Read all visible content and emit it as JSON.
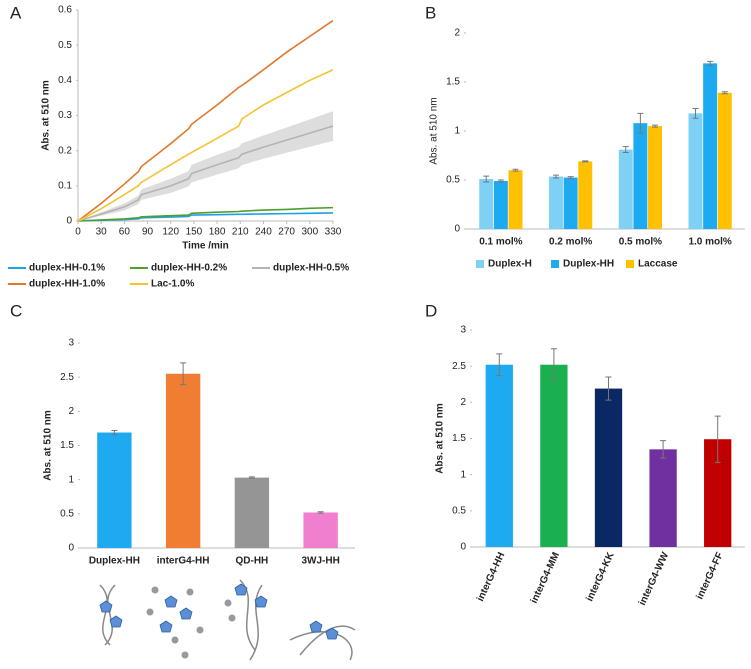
{
  "chart_data": [
    {
      "type": "line",
      "panel": "A",
      "xlabel": "Time /min",
      "ylabel": "Abs. at 510 nm",
      "x": [
        0,
        30,
        60,
        78,
        82,
        120,
        143,
        147,
        180,
        208,
        212,
        240,
        270,
        300,
        330
      ],
      "xlim": [
        0,
        330
      ],
      "xticks": [
        0,
        30,
        60,
        90,
        120,
        150,
        180,
        210,
        240,
        270,
        300,
        330
      ],
      "ylim": [
        0,
        0.6
      ],
      "yticks": [
        0,
        0.1,
        0.2,
        0.3,
        0.4,
        0.5,
        0.6
      ],
      "series": [
        {
          "name": "duplex-HH-0.1%",
          "color": "#1ea0e6",
          "values": [
            0,
            0.002,
            0.004,
            0.006,
            0.009,
            0.011,
            0.013,
            0.017,
            0.018,
            0.019,
            0.019,
            0.02,
            0.021,
            0.022,
            0.023
          ]
        },
        {
          "name": "duplex-HH-0.2%",
          "color": "#4ca02c",
          "values": [
            0,
            0.003,
            0.006,
            0.009,
            0.012,
            0.015,
            0.017,
            0.022,
            0.025,
            0.027,
            0.028,
            0.031,
            0.033,
            0.036,
            0.038
          ]
        },
        {
          "name": "duplex-HH-0.5%",
          "color": "#b4b4b4",
          "values": [
            0,
            0.02,
            0.04,
            0.06,
            0.075,
            0.1,
            0.12,
            0.135,
            0.16,
            0.18,
            0.19,
            0.21,
            0.23,
            0.25,
            0.27
          ],
          "errors": [
            0,
            0.005,
            0.01,
            0.012,
            0.015,
            0.02,
            0.022,
            0.025,
            0.028,
            0.03,
            0.031,
            0.033,
            0.036,
            0.039,
            0.042
          ]
        },
        {
          "name": "duplex-HH-1.0%",
          "color": "#e0782c",
          "values": [
            0,
            0.05,
            0.105,
            0.14,
            0.155,
            0.22,
            0.262,
            0.275,
            0.33,
            0.38,
            0.385,
            0.43,
            0.48,
            0.525,
            0.57
          ]
        },
        {
          "name": "Lac-1.0%",
          "color": "#f5c230",
          "values": [
            0,
            0.035,
            0.075,
            0.1,
            0.11,
            0.16,
            0.19,
            0.195,
            0.235,
            0.27,
            0.29,
            0.33,
            0.365,
            0.4,
            0.43
          ]
        }
      ]
    },
    {
      "type": "bar",
      "panel": "B",
      "ylabel": "Abs. at 510 nm",
      "categories": [
        "0.1 mol%",
        "0.2 mol%",
        "0.5 mol%",
        "1.0 mol%"
      ],
      "ylim": [
        0,
        2
      ],
      "yticks": [
        0,
        0.5,
        1,
        1.5,
        2
      ],
      "series": [
        {
          "name": "Duplex-H",
          "color": "#7fd0f5",
          "values": [
            0.51,
            0.535,
            0.81,
            1.18
          ],
          "errors": [
            0.03,
            0.015,
            0.03,
            0.05
          ]
        },
        {
          "name": "Duplex-HH",
          "color": "#1eaaf0",
          "values": [
            0.49,
            0.525,
            1.08,
            1.69
          ],
          "errors": [
            0.01,
            0.01,
            0.1,
            0.02
          ]
        },
        {
          "name": "Laccase",
          "color": "#ffc000",
          "values": [
            0.6,
            0.69,
            1.05,
            1.39
          ],
          "errors": [
            0.01,
            0.005,
            0.01,
            0.01
          ]
        }
      ]
    },
    {
      "type": "bar",
      "panel": "C",
      "ylabel": "Abs. at 510 nm",
      "categories": [
        "Duplex-HH",
        "interG4-HH",
        "QD-HH",
        "3WJ-HH"
      ],
      "values": [
        1.69,
        2.55,
        1.03,
        0.52
      ],
      "errors": [
        0.03,
        0.16,
        0.01,
        0.01
      ],
      "colors": [
        "#1eaaf0",
        "#f07d32",
        "#959595",
        "#f07fd0"
      ],
      "ylim": [
        0,
        3
      ],
      "yticks": [
        0,
        0.5,
        1,
        1.5,
        2,
        2.5,
        3
      ]
    },
    {
      "type": "bar",
      "panel": "D",
      "ylabel": "Abs. at 510 nm",
      "categories": [
        "interG4-HH",
        "interG4-MM",
        "interG4-KK",
        "interG4-WW",
        "interG4-FF"
      ],
      "values": [
        2.52,
        2.52,
        2.19,
        1.35,
        1.49
      ],
      "errors": [
        0.15,
        0.22,
        0.16,
        0.12,
        0.32
      ],
      "colors": [
        "#1eaaf0",
        "#1ab050",
        "#0a2864",
        "#7030a0",
        "#c00000"
      ],
      "ylim": [
        0,
        3
      ],
      "yticks": [
        0,
        0.5,
        1,
        1.5,
        2,
        2.5,
        3
      ]
    }
  ]
}
